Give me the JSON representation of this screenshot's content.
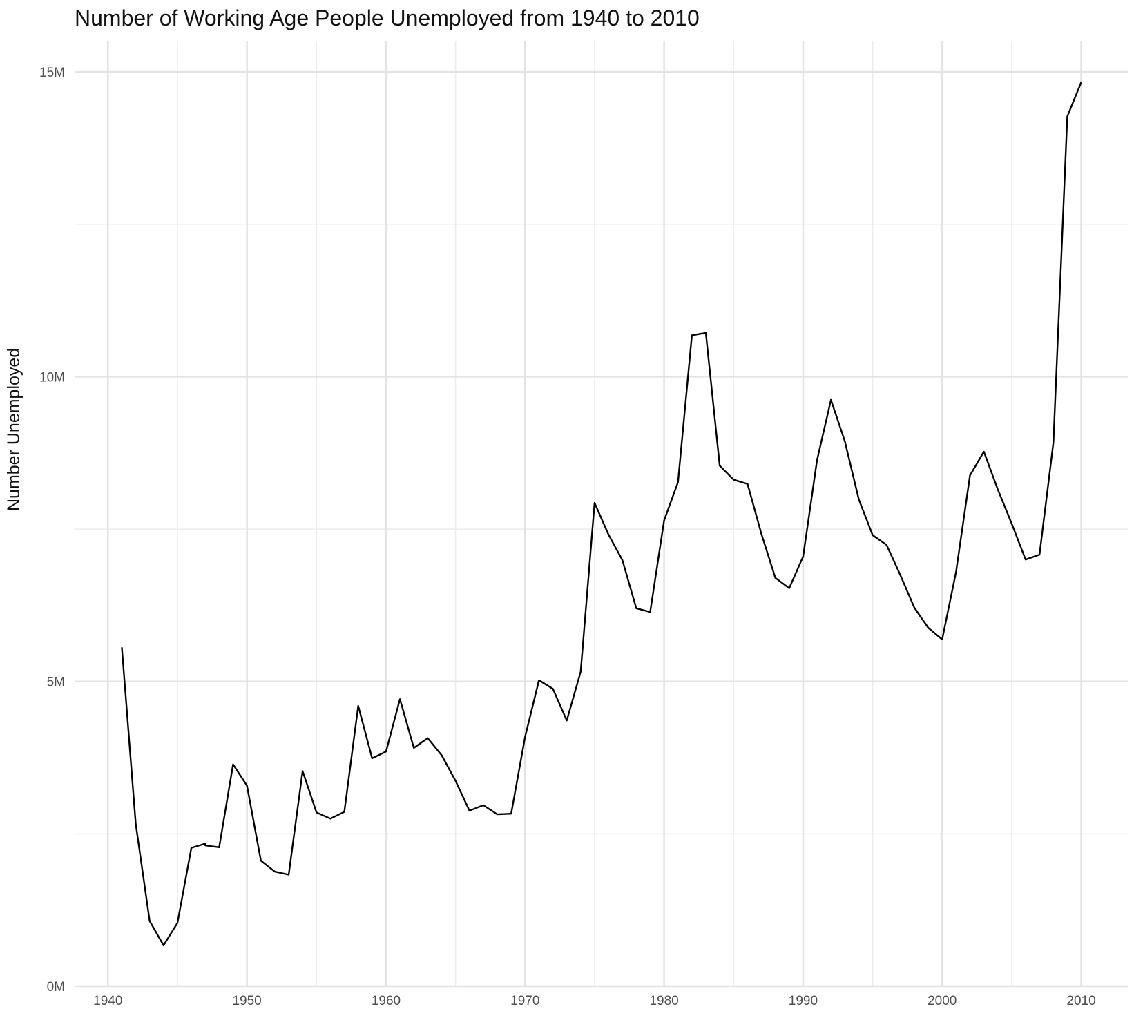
{
  "chart_data": {
    "type": "line",
    "title": "Number of Working Age People Unemployed from 1940 to 2010",
    "xlabel": "",
    "ylabel": "Number Unemployed",
    "xlim": [
      1937.6,
      2013.4
    ],
    "ylim": [
      0,
      15500000
    ],
    "x_ticks": [
      1940,
      1950,
      1960,
      1970,
      1980,
      1990,
      2000,
      2010
    ],
    "x_tick_labels": [
      "1940",
      "1950",
      "1960",
      "1970",
      "1980",
      "1990",
      "2000",
      "2010"
    ],
    "y_ticks": [
      0,
      5000000,
      10000000,
      15000000
    ],
    "y_tick_labels": [
      "0M",
      "5M",
      "10M",
      "15M"
    ],
    "y_minor_ticks": [
      2500000,
      7500000,
      12500000
    ],
    "x_minor_ticks": [
      1945,
      1955,
      1965,
      1975,
      1985,
      1995,
      2005
    ],
    "grid": true,
    "line_color": "#000000",
    "series": [
      {
        "points": [
          [
            1941,
            5560000
          ],
          [
            1942,
            2660000
          ],
          [
            1943,
            1070000
          ],
          [
            1944,
            670000
          ],
          [
            1945,
            1040000
          ],
          [
            1946,
            2270000
          ],
          [
            1947,
            2340000
          ],
          [
            1947,
            2310000
          ],
          [
            1948,
            2280000
          ],
          [
            1949,
            3640000
          ],
          [
            1950,
            3290000
          ],
          [
            1951,
            2060000
          ],
          [
            1952,
            1880000
          ],
          [
            1953,
            1830000
          ],
          [
            1954,
            3530000
          ],
          [
            1955,
            2850000
          ],
          [
            1956,
            2750000
          ],
          [
            1957,
            2860000
          ],
          [
            1958,
            4600000
          ],
          [
            1959,
            3740000
          ],
          [
            1960,
            3850000
          ],
          [
            1961,
            4710000
          ],
          [
            1962,
            3910000
          ],
          [
            1963,
            4070000
          ],
          [
            1964,
            3790000
          ],
          [
            1965,
            3370000
          ],
          [
            1966,
            2880000
          ],
          [
            1967,
            2970000
          ],
          [
            1968,
            2820000
          ],
          [
            1969,
            2830000
          ],
          [
            1970,
            4090000
          ],
          [
            1971,
            5020000
          ],
          [
            1972,
            4880000
          ],
          [
            1973,
            4360000
          ],
          [
            1974,
            5160000
          ],
          [
            1975,
            7930000
          ],
          [
            1976,
            7410000
          ],
          [
            1977,
            6990000
          ],
          [
            1978,
            6200000
          ],
          [
            1979,
            6140000
          ],
          [
            1980,
            7640000
          ],
          [
            1981,
            8270000
          ],
          [
            1982,
            10680000
          ],
          [
            1983,
            10720000
          ],
          [
            1984,
            8540000
          ],
          [
            1985,
            8310000
          ],
          [
            1986,
            8240000
          ],
          [
            1987,
            7420000
          ],
          [
            1988,
            6700000
          ],
          [
            1989,
            6530000
          ],
          [
            1990,
            7050000
          ],
          [
            1991,
            8630000
          ],
          [
            1992,
            9620000
          ],
          [
            1993,
            8940000
          ],
          [
            1994,
            7990000
          ],
          [
            1995,
            7400000
          ],
          [
            1996,
            7240000
          ],
          [
            1997,
            6740000
          ],
          [
            1998,
            6210000
          ],
          [
            1999,
            5880000
          ],
          [
            2000,
            5690000
          ],
          [
            2001,
            6800000
          ],
          [
            2002,
            8380000
          ],
          [
            2003,
            8770000
          ],
          [
            2004,
            8150000
          ],
          [
            2005,
            7590000
          ],
          [
            2006,
            7000000
          ],
          [
            2007,
            7080000
          ],
          [
            2008,
            8920000
          ],
          [
            2009,
            14270000
          ],
          [
            2010,
            14830000
          ]
        ]
      }
    ]
  }
}
